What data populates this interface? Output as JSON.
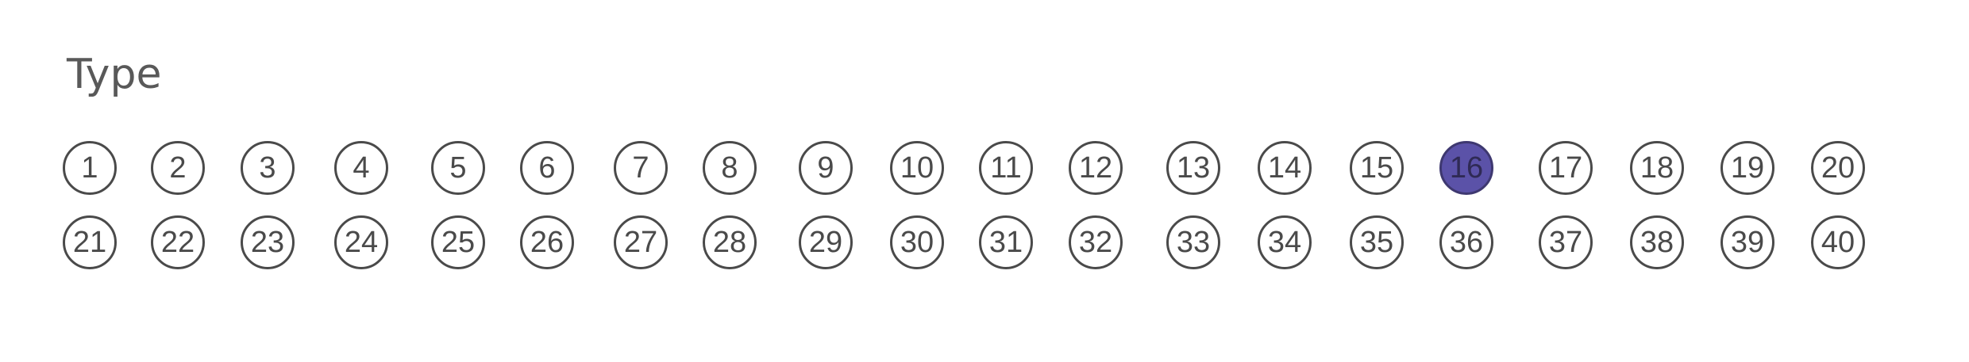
{
  "section": {
    "title": "Type"
  },
  "selected": 16,
  "rows": [
    {
      "bubbles": [
        {
          "label": "1",
          "filled": false
        },
        {
          "label": "2",
          "filled": false
        },
        {
          "label": "3",
          "filled": false
        },
        {
          "label": "4",
          "filled": false
        },
        {
          "label": "5",
          "filled": false
        },
        {
          "label": "6",
          "filled": false
        },
        {
          "label": "7",
          "filled": false
        },
        {
          "label": "8",
          "filled": false
        },
        {
          "label": "9",
          "filled": false
        },
        {
          "label": "10",
          "filled": false
        },
        {
          "label": "11",
          "filled": false
        },
        {
          "label": "12",
          "filled": false
        },
        {
          "label": "13",
          "filled": false
        },
        {
          "label": "14",
          "filled": false
        },
        {
          "label": "15",
          "filled": false
        },
        {
          "label": "16",
          "filled": true
        },
        {
          "label": "17",
          "filled": false
        },
        {
          "label": "18",
          "filled": false
        },
        {
          "label": "19",
          "filled": false
        },
        {
          "label": "20",
          "filled": false
        }
      ]
    },
    {
      "bubbles": [
        {
          "label": "21",
          "filled": false
        },
        {
          "label": "22",
          "filled": false
        },
        {
          "label": "23",
          "filled": false
        },
        {
          "label": "24",
          "filled": false
        },
        {
          "label": "25",
          "filled": false
        },
        {
          "label": "26",
          "filled": false
        },
        {
          "label": "27",
          "filled": false
        },
        {
          "label": "28",
          "filled": false
        },
        {
          "label": "29",
          "filled": false
        },
        {
          "label": "30",
          "filled": false
        },
        {
          "label": "31",
          "filled": false
        },
        {
          "label": "32",
          "filled": false
        },
        {
          "label": "33",
          "filled": false
        },
        {
          "label": "34",
          "filled": false
        },
        {
          "label": "35",
          "filled": false
        },
        {
          "label": "36",
          "filled": false
        },
        {
          "label": "37",
          "filled": false
        },
        {
          "label": "38",
          "filled": false
        },
        {
          "label": "39",
          "filled": false
        },
        {
          "label": "40",
          "filled": false
        }
      ]
    }
  ],
  "colors": {
    "fill": "#5b52a8",
    "outline": "#4a4a4a",
    "text": "#595959"
  }
}
